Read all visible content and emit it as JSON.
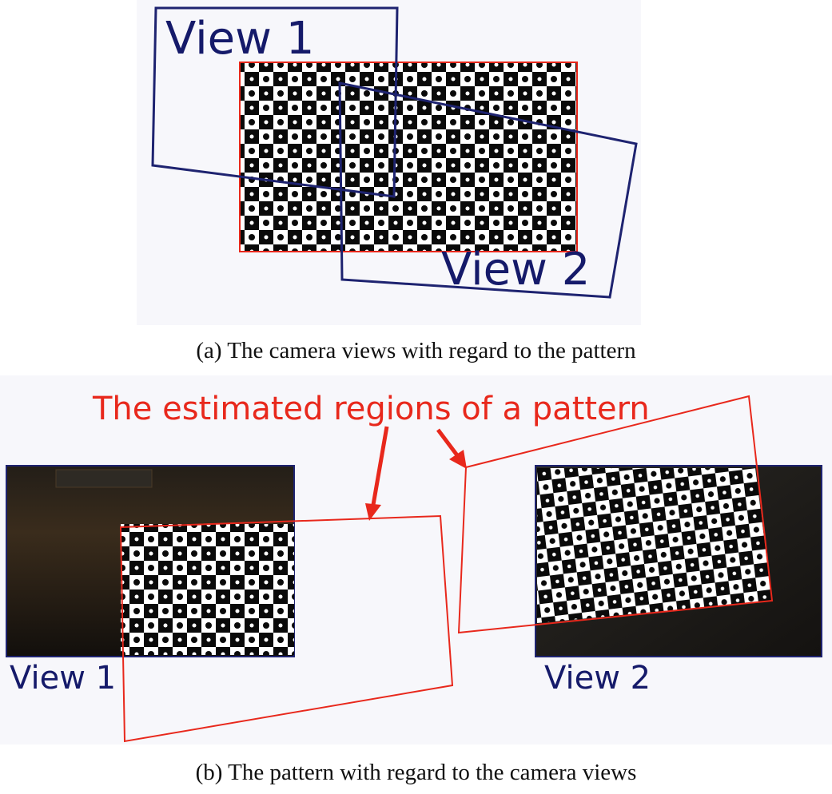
{
  "panel_a": {
    "view1_label": "View 1",
    "view2_label": "View 2",
    "caption": "(a) The camera views with regard to the pattern"
  },
  "panel_b": {
    "title": "The estimated regions of a pattern",
    "view1_label": "View 1",
    "view2_label": "View 2",
    "caption": "(b) The pattern with regard to the camera views"
  },
  "colors": {
    "view_outline": "#1e2370",
    "pattern_outline": "#e8281c",
    "pattern_dark": "#0a0a0a",
    "pattern_light": "#ffffff",
    "photo_background": "#1a1612"
  }
}
